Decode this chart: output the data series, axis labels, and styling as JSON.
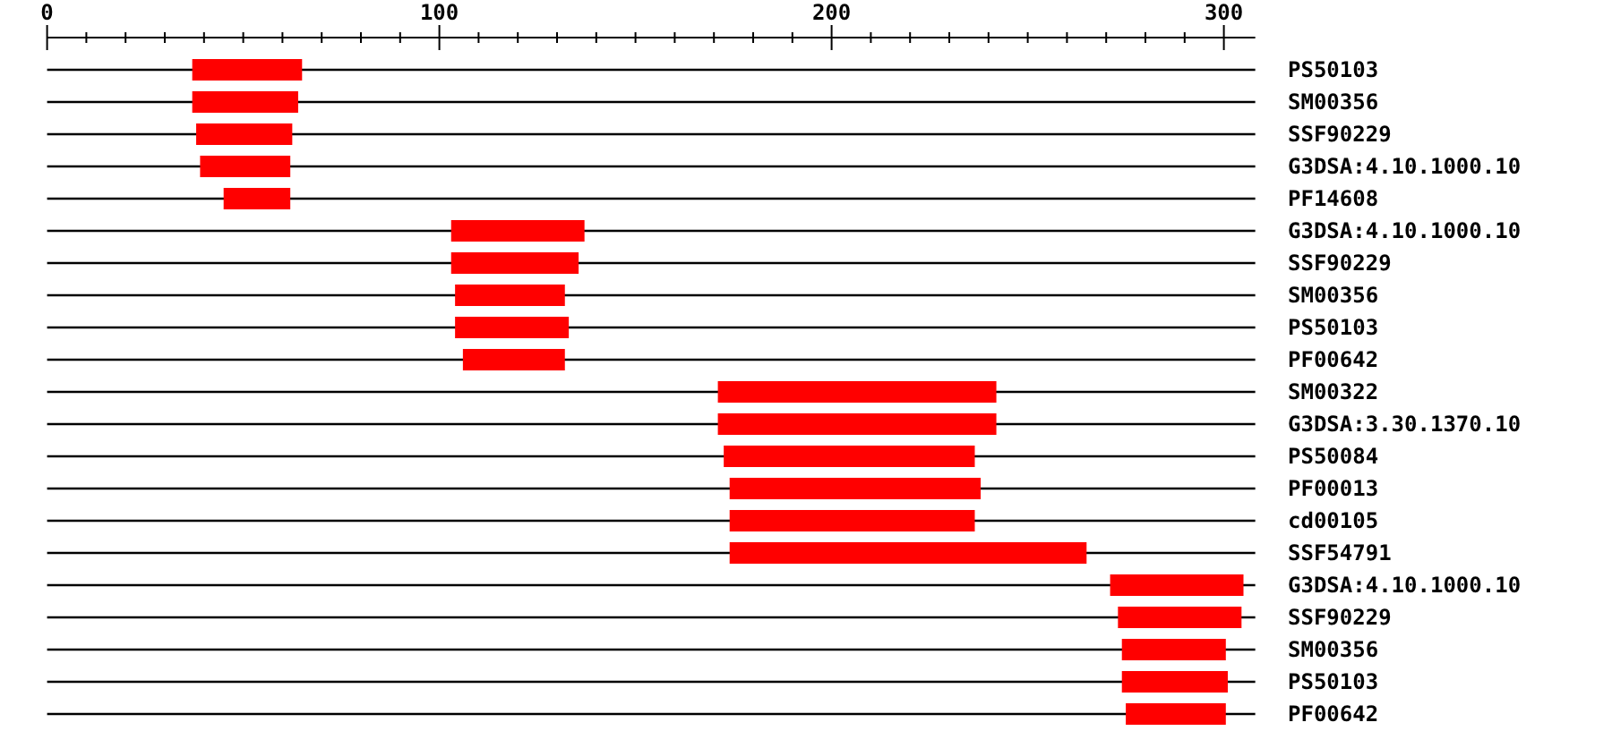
{
  "chart_data": {
    "type": "bar",
    "orientation": "horizontal",
    "color": "#ff0000",
    "grid": "y",
    "categories": [
      "PS50103",
      "SM00356",
      "SSF90229",
      "G3DSA:4.10.1000.10",
      "PF14608",
      "G3DSA:4.10.1000.10",
      "SSF90229",
      "SM00356",
      "PS50103",
      "PF00642",
      "SM00322",
      "G3DSA:3.30.1370.10",
      "PS50084",
      "PF00013",
      "cd00105",
      "SSF54791",
      "G3DSA:4.10.1000.10",
      "SSF90229",
      "SM00356",
      "PS50103",
      "PF00642"
    ],
    "base": [
      37,
      37,
      38,
      39,
      45,
      103,
      103,
      104,
      104,
      106,
      171,
      171,
      172.5,
      174,
      174,
      174,
      271,
      273,
      274,
      274,
      275
    ],
    "values": [
      28,
      27,
      24.5,
      23,
      17,
      34,
      32.5,
      28,
      29,
      26,
      71,
      71,
      64,
      64,
      62.5,
      91,
      34,
      31.5,
      26.5,
      27,
      25.5
    ],
    "xlim": [
      0,
      308
    ],
    "xticks": [
      0,
      {
        "value": 10,
        "label": null
      },
      {
        "value": 20,
        "label": null
      },
      {
        "value": 30,
        "label": null
      },
      {
        "value": 40,
        "label": null
      },
      {
        "value": 50,
        "label": null
      },
      {
        "value": 60,
        "label": null
      },
      {
        "value": 70,
        "label": null
      },
      {
        "value": 80,
        "label": null
      },
      {
        "value": 90,
        "label": null
      },
      100,
      {
        "value": 110,
        "label": null
      },
      {
        "value": 120,
        "label": null
      },
      {
        "value": 130,
        "label": null
      },
      {
        "value": 140,
        "label": null
      },
      {
        "value": 150,
        "label": null
      },
      {
        "value": 160,
        "label": null
      },
      {
        "value": 170,
        "label": null
      },
      {
        "value": 180,
        "label": null
      },
      {
        "value": 190,
        "label": null
      },
      200,
      {
        "value": 210,
        "label": null
      },
      {
        "value": 220,
        "label": null
      },
      {
        "value": 230,
        "label": null
      },
      {
        "value": 240,
        "label": null
      },
      {
        "value": 250,
        "label": null
      },
      {
        "value": 260,
        "label": null
      },
      {
        "value": 270,
        "label": null
      },
      {
        "value": 280,
        "label": null
      },
      {
        "value": 290,
        "label": null
      },
      300
    ]
  }
}
